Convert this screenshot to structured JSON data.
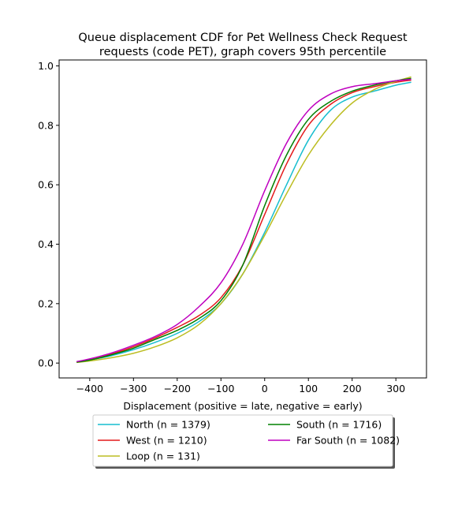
{
  "chart_data": {
    "type": "line",
    "title": [
      "Queue displacement CDF for Pet Wellness Check Request",
      "requests (code PET), graph covers 95th percentile"
    ],
    "xlabel": "Displacement (positive = late, negative = early)",
    "ylabel": "",
    "xlim": [
      -470,
      370
    ],
    "ylim": [
      -0.05,
      1.02
    ],
    "x_ticks": [
      -400,
      -300,
      -200,
      -100,
      0,
      100,
      200,
      300
    ],
    "y_ticks": [
      0.0,
      0.2,
      0.4,
      0.6,
      0.8,
      1.0
    ],
    "x_tick_labels": [
      "−400",
      "−300",
      "−200",
      "−100",
      "0",
      "100",
      "200",
      "300"
    ],
    "y_tick_labels": [
      "0.0",
      "0.2",
      "0.4",
      "0.6",
      "0.8",
      "1.0"
    ],
    "grid": false,
    "legend_position": "below",
    "series": [
      {
        "name": "North (n = 1379)",
        "color": "#17becf",
        "x": [
          -430,
          -400,
          -350,
          -300,
          -250,
          -200,
          -150,
          -100,
          -50,
          0,
          50,
          100,
          150,
          200,
          250,
          300,
          335
        ],
        "y": [
          0.003,
          0.01,
          0.025,
          0.045,
          0.07,
          0.1,
          0.14,
          0.2,
          0.3,
          0.44,
          0.6,
          0.75,
          0.85,
          0.895,
          0.915,
          0.935,
          0.945
        ]
      },
      {
        "name": "West (n = 1210)",
        "color": "#e41a1c",
        "x": [
          -430,
          -400,
          -350,
          -300,
          -250,
          -200,
          -150,
          -100,
          -50,
          0,
          50,
          100,
          150,
          200,
          250,
          300,
          335
        ],
        "y": [
          0.003,
          0.01,
          0.03,
          0.055,
          0.085,
          0.12,
          0.16,
          0.22,
          0.33,
          0.5,
          0.67,
          0.8,
          0.87,
          0.91,
          0.93,
          0.945,
          0.952
        ]
      },
      {
        "name": "Loop (n = 131)",
        "color": "#bcbd22",
        "x": [
          -430,
          -400,
          -350,
          -300,
          -250,
          -200,
          -150,
          -100,
          -50,
          0,
          50,
          100,
          150,
          200,
          250,
          300,
          335
        ],
        "y": [
          0.002,
          0.007,
          0.018,
          0.033,
          0.055,
          0.085,
          0.13,
          0.2,
          0.3,
          0.43,
          0.57,
          0.7,
          0.8,
          0.875,
          0.92,
          0.948,
          0.963
        ]
      },
      {
        "name": "South (n = 1716)",
        "color": "#008000",
        "x": [
          -430,
          -400,
          -350,
          -300,
          -250,
          -200,
          -150,
          -100,
          -50,
          0,
          50,
          100,
          150,
          200,
          250,
          300,
          335
        ],
        "y": [
          0.003,
          0.01,
          0.028,
          0.05,
          0.08,
          0.11,
          0.15,
          0.21,
          0.33,
          0.53,
          0.7,
          0.82,
          0.88,
          0.915,
          0.935,
          0.95,
          0.958
        ]
      },
      {
        "name": "Far South (n = 1082)",
        "color": "#bf00bf",
        "x": [
          -430,
          -400,
          -350,
          -300,
          -250,
          -200,
          -150,
          -100,
          -50,
          0,
          50,
          100,
          150,
          200,
          250,
          300,
          335
        ],
        "y": [
          0.005,
          0.014,
          0.034,
          0.06,
          0.09,
          0.13,
          0.19,
          0.27,
          0.4,
          0.58,
          0.74,
          0.85,
          0.905,
          0.93,
          0.94,
          0.95,
          0.955
        ]
      }
    ],
    "legend_order": [
      0,
      1,
      2,
      3,
      4
    ]
  }
}
